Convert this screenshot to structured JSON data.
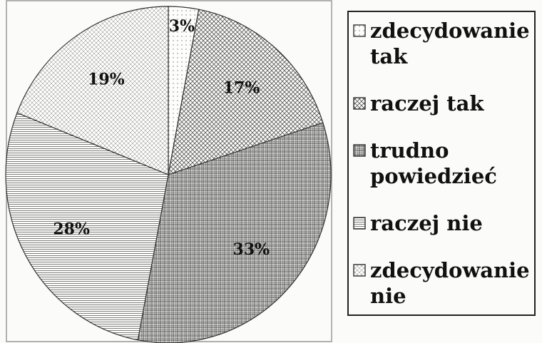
{
  "chart_data": {
    "type": "pie",
    "categories": [
      "zdecydowanie tak",
      "raczej tak",
      "trudno powiedzieć",
      "raczej nie",
      "zdecydowanie nie"
    ],
    "values": [
      3,
      17,
      33,
      28,
      19
    ],
    "value_labels": [
      "3%",
      "17%",
      "33%",
      "28%",
      "19%"
    ],
    "colors": [
      "#777777",
      "#555555",
      "#444444",
      "#555555",
      "#777777"
    ]
  }
}
